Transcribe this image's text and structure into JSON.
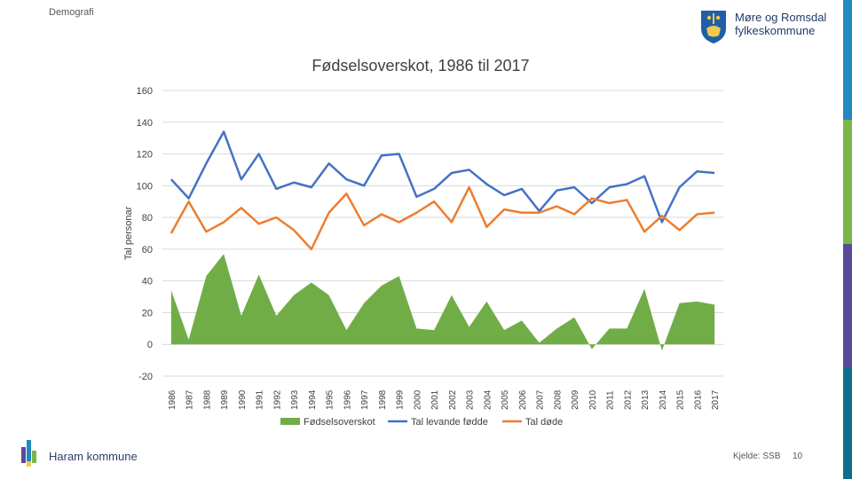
{
  "header": {
    "section": "Demografi",
    "logo_line1": "Møre og Romsdal",
    "logo_line2": "fylkeskommune"
  },
  "footer": {
    "organisation": "Haram kommune",
    "source": "Kjelde: SSB",
    "page_number": "10"
  },
  "colors": {
    "surplus": "#70ad47",
    "births": "#4472c4",
    "deaths": "#ed7d31",
    "grid": "#d9d9d9",
    "side_bar": [
      "#1f8ac0",
      "#7ab648",
      "#5a4a9c",
      "#0f6e8c"
    ]
  },
  "chart_data": {
    "type": "line",
    "title": "Fødselsoverskot, 1986 til 2017",
    "xlabel": "",
    "ylabel": "Tal personar",
    "ylim": [
      -20,
      160
    ],
    "yticks": [
      -20,
      0,
      20,
      40,
      60,
      80,
      100,
      120,
      140,
      160
    ],
    "grid": true,
    "legend_position": "bottom",
    "categories": [
      "1986",
      "1987",
      "1988",
      "1989",
      "1990",
      "1991",
      "1992",
      "1993",
      "1994",
      "1995",
      "1996",
      "1997",
      "1998",
      "1999",
      "2000",
      "2001",
      "2002",
      "2003",
      "2004",
      "2005",
      "2006",
      "2007",
      "2008",
      "2009",
      "2010",
      "2011",
      "2012",
      "2013",
      "2014",
      "2015",
      "2016",
      "2017"
    ],
    "series": [
      {
        "name": "Fødselsoverskot",
        "type": "area",
        "values": [
          34,
          3,
          43,
          57,
          18,
          44,
          18,
          31,
          39,
          31,
          9,
          26,
          37,
          43,
          10,
          9,
          31,
          11,
          27,
          9,
          15,
          1,
          10,
          17,
          -3,
          10,
          10,
          35,
          -4,
          26,
          27,
          25
        ]
      },
      {
        "name": "Tal levande fødde",
        "type": "line",
        "values": [
          104,
          92,
          114,
          134,
          104,
          120,
          98,
          102,
          99,
          114,
          104,
          100,
          119,
          120,
          93,
          98,
          108,
          110,
          101,
          94,
          98,
          84,
          97,
          99,
          89,
          99,
          101,
          106,
          77,
          99,
          109,
          108
        ]
      },
      {
        "name": "Tal døde",
        "type": "line",
        "values": [
          70,
          90,
          71,
          77,
          86,
          76,
          80,
          72,
          60,
          83,
          95,
          75,
          82,
          77,
          83,
          90,
          77,
          99,
          74,
          85,
          83,
          83,
          87,
          82,
          92,
          89,
          91,
          71,
          81,
          72,
          82,
          83
        ]
      }
    ]
  }
}
